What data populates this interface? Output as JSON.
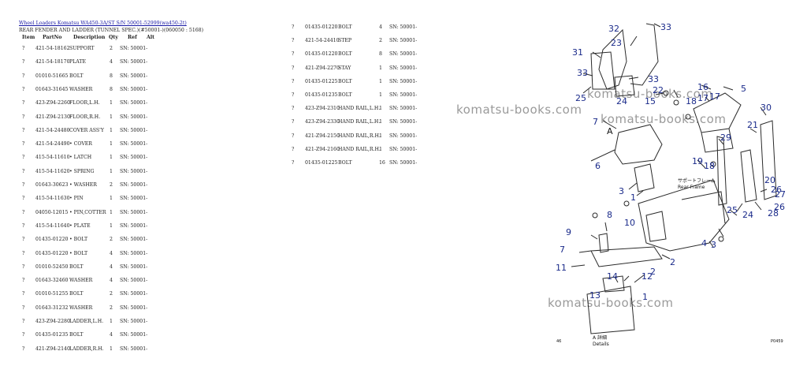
{
  "breadcrumb": "Wheel Loaders Komatsu WA450-3A/ST S/N 50001-52999(wa450-2t)",
  "subtitle": "REAR FENDER AND LADDER (TUNNEL SPEC.)(#50001-)(060050 : 5168)",
  "headers": {
    "item": "Item",
    "partno": "PartNo",
    "description": "Description",
    "qty": "Qty",
    "ref": "Ref",
    "alt": "Alt"
  },
  "left_parts": [
    {
      "item": "?",
      "partno": "421-54-18162",
      "description": "SUPPORT",
      "qty": "2",
      "ref": "SN: 50001-"
    },
    {
      "item": "?",
      "partno": "421-54-18170",
      "description": "PLATE",
      "qty": "4",
      "ref": "SN: 50001-"
    },
    {
      "item": "?",
      "partno": "01010-51665",
      "description": "BOLT",
      "qty": "8",
      "ref": "SN: 50001-"
    },
    {
      "item": "?",
      "partno": "01643-31645",
      "description": "WASHER",
      "qty": "8",
      "ref": "SN: 50001-"
    },
    {
      "item": "?",
      "partno": "423-Z94-2260",
      "description": "FLOOR,L.H.",
      "qty": "1",
      "ref": "SN: 50001-"
    },
    {
      "item": "?",
      "partno": "421-Z94-2130",
      "description": "FLOOR,R.H.",
      "qty": "1",
      "ref": "SN: 50001-"
    },
    {
      "item": "?",
      "partno": "421-54-24480",
      "description": "COVER ASS'Y",
      "qty": "1",
      "ref": "SN: 50001-"
    },
    {
      "item": "?",
      "partno": "421-54-24490",
      "description": "• COVER",
      "qty": "1",
      "ref": "SN: 50001-"
    },
    {
      "item": "?",
      "partno": "415-54-11610",
      "description": "• LATCH",
      "qty": "1",
      "ref": "SN: 50001-"
    },
    {
      "item": "?",
      "partno": "415-54-11620",
      "description": "• SPRING",
      "qty": "1",
      "ref": "SN: 50001-"
    },
    {
      "item": "?",
      "partno": "01643-30623",
      "description": "• WASHER",
      "qty": "2",
      "ref": "SN: 50001-"
    },
    {
      "item": "?",
      "partno": "415-54-11630",
      "description": "• PIN",
      "qty": "1",
      "ref": "SN: 50001-"
    },
    {
      "item": "?",
      "partno": "04050-12015",
      "description": "• PIN,COTTER",
      "qty": "1",
      "ref": "SN: 50001-"
    },
    {
      "item": "?",
      "partno": "415-54-11640",
      "description": "• PLATE",
      "qty": "1",
      "ref": "SN: 50001-"
    },
    {
      "item": "?",
      "partno": "01435-01220",
      "description": "• BOLT",
      "qty": "2",
      "ref": "SN: 50001-"
    },
    {
      "item": "?",
      "partno": "01435-01220",
      "description": "• BOLT",
      "qty": "4",
      "ref": "SN: 50001-"
    },
    {
      "item": "?",
      "partno": "01010-52450",
      "description": "BOLT",
      "qty": "4",
      "ref": "SN: 50001-"
    },
    {
      "item": "?",
      "partno": "01643-32460",
      "description": "WASHER",
      "qty": "4",
      "ref": "SN: 50001-"
    },
    {
      "item": "?",
      "partno": "01010-51255",
      "description": "BOLT",
      "qty": "2",
      "ref": "SN: 50001-"
    },
    {
      "item": "?",
      "partno": "01643-31232",
      "description": "WASHER",
      "qty": "2",
      "ref": "SN: 50001-"
    },
    {
      "item": "?",
      "partno": "423-Z94-2280",
      "description": "LADDER,L.H.",
      "qty": "1",
      "ref": "SN: 50001-"
    },
    {
      "item": "?",
      "partno": "01435-01235",
      "description": "BOLT",
      "qty": "4",
      "ref": "SN: 50001-"
    },
    {
      "item": "?",
      "partno": "421-Z94-2140",
      "description": "LADDER,R.H.",
      "qty": "1",
      "ref": "SN: 50001-"
    }
  ],
  "right_parts": [
    {
      "item": "?",
      "partno": "01435-01220",
      "description": "BOLT",
      "qty": "4",
      "ref": "SN: 50001-"
    },
    {
      "item": "?",
      "partno": "421-54-24410",
      "description": "STEP",
      "qty": "2",
      "ref": "SN: 50001-"
    },
    {
      "item": "?",
      "partno": "01435-01220",
      "description": "BOLT",
      "qty": "8",
      "ref": "SN: 50001-"
    },
    {
      "item": "?",
      "partno": "421-Z94-2270",
      "description": "STAY",
      "qty": "1",
      "ref": "SN: 50001-"
    },
    {
      "item": "?",
      "partno": "01435-01225",
      "description": "BOLT",
      "qty": "1",
      "ref": "SN: 50001-"
    },
    {
      "item": "?",
      "partno": "01435-01235",
      "description": "BOLT",
      "qty": "1",
      "ref": "SN: 50001-"
    },
    {
      "item": "?",
      "partno": "423-Z94-2310",
      "description": "HAND RAIL,L.H.",
      "qty": "1",
      "ref": "SN: 50001-"
    },
    {
      "item": "?",
      "partno": "423-Z94-2330",
      "description": "HAND RAIL,L.H.",
      "qty": "1",
      "ref": "SN: 50001-"
    },
    {
      "item": "?",
      "partno": "421-Z94-2150",
      "description": "HAND RAIL,R.H.",
      "qty": "1",
      "ref": "SN: 50001-"
    },
    {
      "item": "?",
      "partno": "421-Z94-2160",
      "description": "HAND RAIL,R.H.",
      "qty": "1",
      "ref": "SN: 50001-"
    },
    {
      "item": "?",
      "partno": "01435-01225",
      "description": "BOLT",
      "qty": "16",
      "ref": "SN: 50001-"
    }
  ],
  "watermark": "komatsu-books.com",
  "diagram": {
    "callouts": [
      "32",
      "33",
      "23",
      "31",
      "33",
      "22",
      "33",
      "24",
      "25",
      "15",
      "18",
      "17",
      "16",
      "17",
      "5",
      "7",
      "30",
      "21",
      "29",
      "26",
      "27",
      "6",
      "19",
      "18",
      "20",
      "3",
      "2",
      "1",
      "26",
      "28",
      "25",
      "24",
      "10",
      "8",
      "9",
      "4",
      "3",
      "7",
      "11",
      "2",
      "1",
      "14",
      "13",
      "12"
    ],
    "frame_label_jp": "サポートフレーム",
    "frame_label_en": "Rear Frame",
    "arrow_label": "A",
    "detail_a_jp": "A 詳細",
    "detail_a_en": "Details",
    "corner_left": "46",
    "corner_right": "P0459"
  }
}
